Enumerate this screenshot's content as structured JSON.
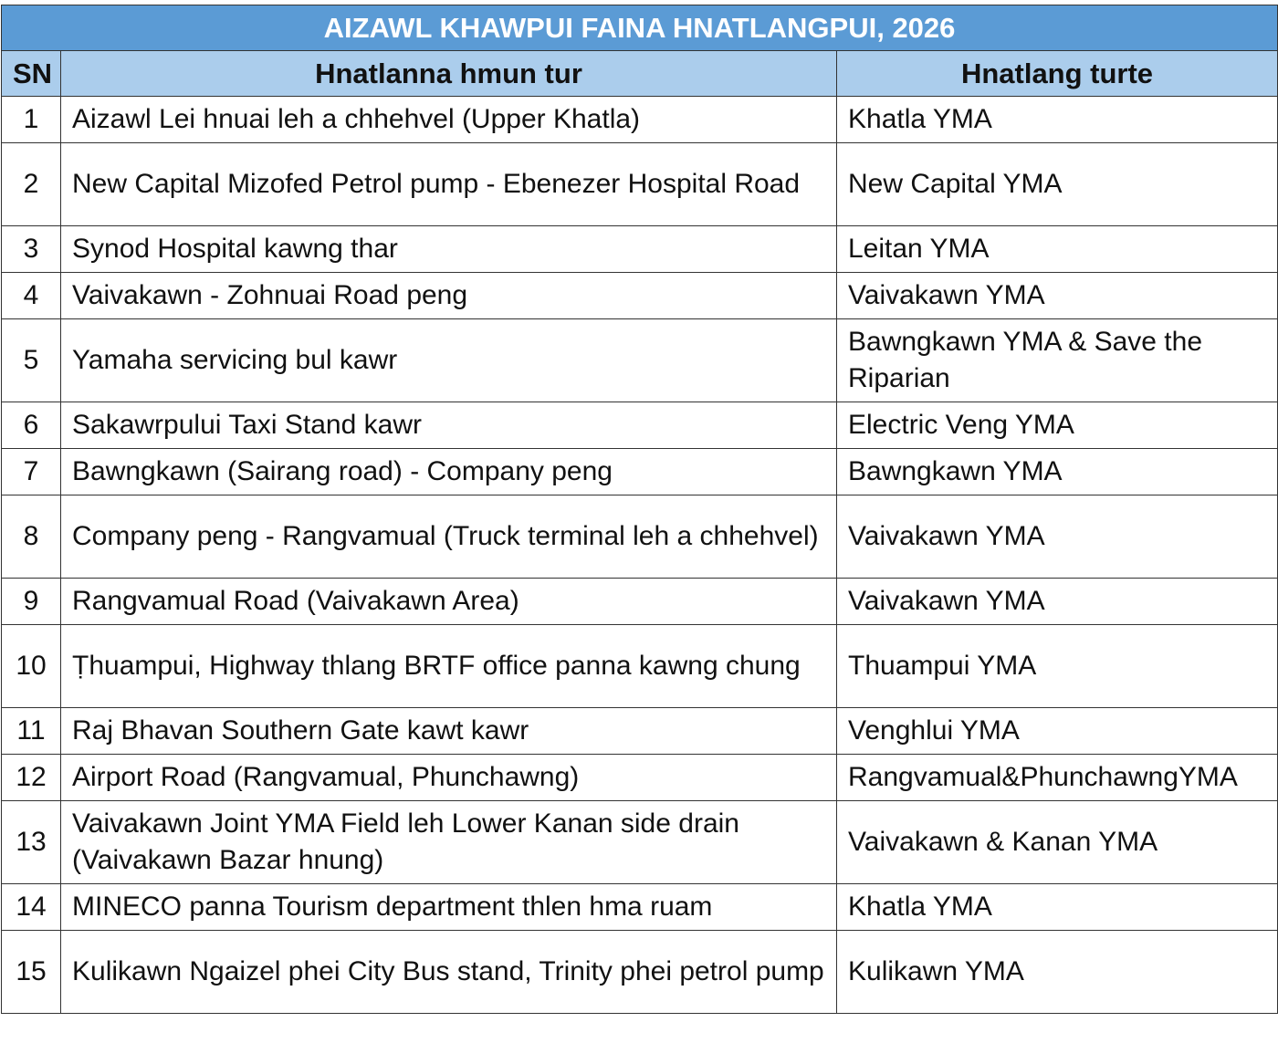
{
  "title": "AIZAWL KHAWPUI FAINA HNATLANGPUI, 2026",
  "headers": {
    "sn": "SN",
    "place": "Hnatlanna hmun tur",
    "group": "Hnatlang turte"
  },
  "colors": {
    "title_bg": "#5B9BD5",
    "header_bg": "#ABCDEC"
  },
  "rows": [
    {
      "sn": "1",
      "place": "Aizawl Lei hnuai leh a chhehvel (Upper Khatla)",
      "group": "Khatla YMA"
    },
    {
      "sn": "2",
      "place": "New Capital Mizofed Petrol pump - Ebenezer Hospital Road",
      "group": "New Capital YMA"
    },
    {
      "sn": "3",
      "place": "Synod Hospital kawng thar",
      "group": "Leitan YMA"
    },
    {
      "sn": "4",
      "place": "Vaivakawn - Zohnuai Road peng",
      "group": "Vaivakawn YMA"
    },
    {
      "sn": "5",
      "place": "Yamaha servicing bul kawr",
      "group": "Bawngkawn YMA & Save the Riparian"
    },
    {
      "sn": "6",
      "place": "Sakawrpului Taxi Stand kawr",
      "group": "Electric Veng YMA"
    },
    {
      "sn": "7",
      "place": "Bawngkawn (Sairang road) - Company peng",
      "group": "Bawngkawn YMA"
    },
    {
      "sn": "8",
      "place": "Company peng - Rangvamual (Truck terminal leh a chhehvel)",
      "group": "Vaivakawn YMA"
    },
    {
      "sn": "9",
      "place": "Rangvamual Road (Vaivakawn Area)",
      "group": "Vaivakawn YMA"
    },
    {
      "sn": "10",
      "place": "Ṭhuampui, Highway thlang BRTF office panna kawng chung",
      "group": "Thuampui YMA"
    },
    {
      "sn": "11",
      "place": "Raj Bhavan Southern Gate kawt kawr",
      "group": "Venghlui YMA"
    },
    {
      "sn": "12",
      "place": "Airport Road (Rangvamual, Phunchawng)",
      "group": "Rangvamual&PhunchawngYMA"
    },
    {
      "sn": "13",
      "place": "Vaivakawn Joint YMA Field leh Lower Kanan side drain (Vaivakawn Bazar hnung)",
      "group": "Vaivakawn & Kanan YMA"
    },
    {
      "sn": "14",
      "place": "MINECO panna Tourism department thlen hma ruam",
      "group": "Khatla YMA"
    },
    {
      "sn": "15",
      "place": "Kulikawn Ngaizel phei City Bus stand, Trinity phei petrol pump",
      "group": "Kulikawn YMA"
    }
  ]
}
